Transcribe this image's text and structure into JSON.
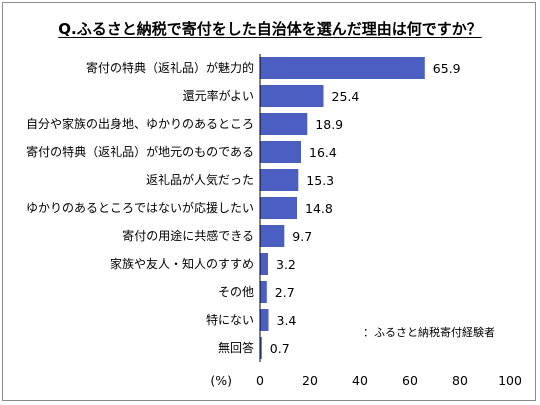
{
  "chart_data": {
    "type": "bar",
    "orientation": "horizontal",
    "title": "Q.ふるさと納税で寄付をした自治体を選んだ理由は何ですか？",
    "categories": [
      "寄付の特典（返礼品）が魅力的",
      "還元率がよい",
      "自分や家族の出身地、ゆかりのあるところ",
      "寄付の特典（返礼品）が地元のものである",
      "返礼品が人気だった",
      "ゆかりのあるところではないが応援したい",
      "寄付の用途に共感できる",
      "家族や友人・知人のすすめ",
      "その他",
      "特にない",
      "無回答"
    ],
    "values": [
      65.9,
      25.4,
      18.9,
      16.4,
      15.3,
      14.8,
      9.7,
      3.2,
      2.7,
      3.4,
      0.7
    ],
    "value_labels": [
      "65.9",
      "25.4",
      "18.9",
      "16.4",
      "15.3",
      "14.8",
      "9.7",
      "3.2",
      "2.7",
      "3.4",
      "0.7"
    ],
    "xlim": [
      0,
      100
    ],
    "xticks": [
      "0",
      "20",
      "40",
      "60",
      "80",
      "100"
    ],
    "xlabel": "(%)",
    "note": "：ふるさと納税寄付経験者",
    "grid": false,
    "bar_color": "#4a5fc1"
  }
}
